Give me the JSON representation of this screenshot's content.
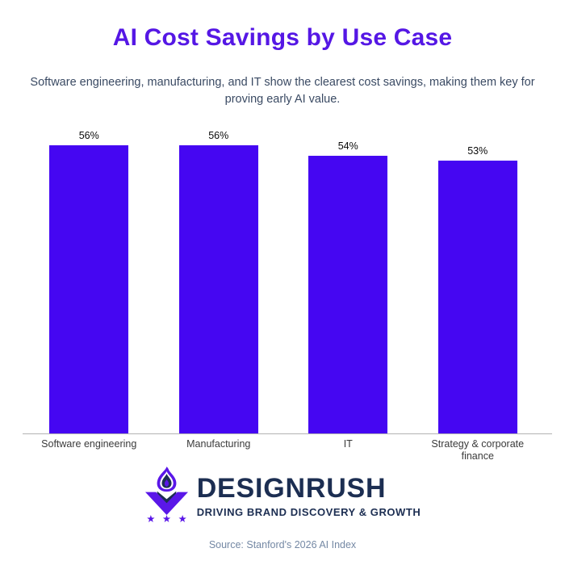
{
  "header": {
    "title": "AI Cost Savings by Use Case",
    "subtitle": "Software engineering, manufacturing, and IT show the clearest cost savings, making them key for proving early AI value."
  },
  "chart_data": {
    "type": "bar",
    "title": "AI Cost Savings by Use Case",
    "categories": [
      "Software engineering",
      "Manufacturing",
      "IT",
      "Strategy & corporate finance"
    ],
    "values": [
      56,
      56,
      54,
      53
    ],
    "value_labels": [
      "56%",
      "56%",
      "54%",
      "53%"
    ],
    "xlabel": "",
    "ylabel": "",
    "ylim": [
      0,
      60
    ],
    "grid": false,
    "legend": "none",
    "bar_color": "#4506F2",
    "value_labels_position": "above-bars"
  },
  "branding": {
    "brand_name": "DESIGNRUSH",
    "tagline": "DRIVING BRAND DISCOVERY & GROWTH",
    "colors": {
      "navy": "#1C2E52",
      "purple": "#5A17E8"
    }
  },
  "footer": {
    "source": "Source: Stanford's 2026 AI Index"
  }
}
